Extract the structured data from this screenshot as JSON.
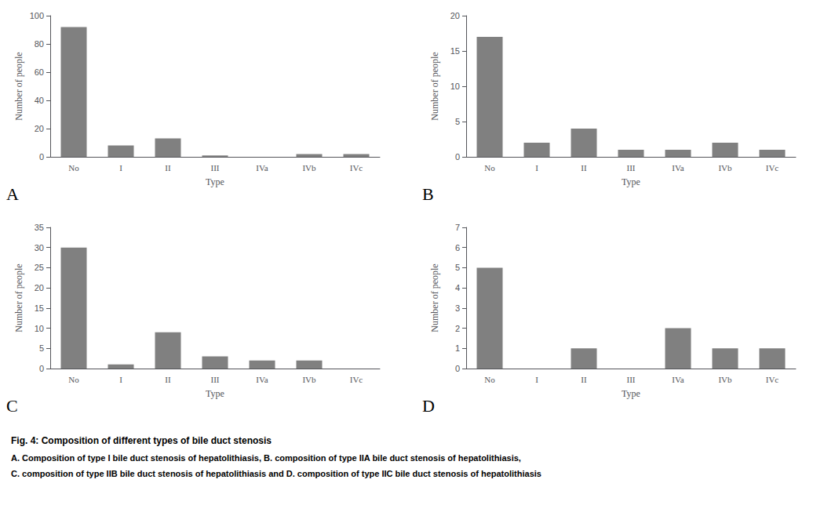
{
  "chart_data": [
    {
      "type": "bar",
      "title": "A",
      "xlabel": "Type",
      "ylabel": "Number of people",
      "categories": [
        "No",
        "I",
        "II",
        "III",
        "IVa",
        "IVb",
        "IVc"
      ],
      "values": [
        92,
        8,
        13,
        1,
        0,
        2,
        2
      ],
      "color": "#808080",
      "ylim": [
        0,
        100
      ],
      "yticks": [
        0,
        20,
        40,
        60,
        80,
        100
      ],
      "grid": false
    },
    {
      "type": "bar",
      "title": "B",
      "xlabel": "Type",
      "ylabel": "Number of people",
      "categories": [
        "No",
        "I",
        "II",
        "III",
        "IVa",
        "IVb",
        "IVc"
      ],
      "values": [
        17,
        2,
        4,
        1,
        1,
        2,
        1
      ],
      "color": "#808080",
      "ylim": [
        0,
        20
      ],
      "yticks": [
        0,
        5,
        10,
        15,
        20
      ],
      "grid": false
    },
    {
      "type": "bar",
      "title": "C",
      "xlabel": "Type",
      "ylabel": "Number of people",
      "categories": [
        "No",
        "I",
        "II",
        "III",
        "IVa",
        "IVb",
        "IVc"
      ],
      "values": [
        30,
        1,
        9,
        3,
        2,
        2,
        0
      ],
      "color": "#808080",
      "ylim": [
        0,
        35
      ],
      "yticks": [
        0,
        5,
        10,
        15,
        20,
        25,
        30,
        35
      ],
      "grid": false
    },
    {
      "type": "bar",
      "title": "D",
      "xlabel": "Type",
      "ylabel": "Number of people",
      "categories": [
        "No",
        "I",
        "II",
        "III",
        "IVa",
        "IVb",
        "IVc"
      ],
      "values": [
        5,
        0,
        1,
        0,
        2,
        1,
        1
      ],
      "color": "#808080",
      "ylim": [
        0,
        7
      ],
      "yticks": [
        0,
        1,
        2,
        3,
        4,
        5,
        6,
        7
      ],
      "grid": false
    }
  ],
  "annotations": [
    "Fig. 4: Composition of different types of bile duct stenosis",
    "A. Composition of type I bile duct stenosis of hepatolithiasis, B. composition of type IIA bile duct stenosis of hepatolithiasis,",
    "C. composition of type IIB bile duct stenosis of hepatolithiasis and D. composition of type IIC bile duct stenosis of hepatolithiasis"
  ]
}
